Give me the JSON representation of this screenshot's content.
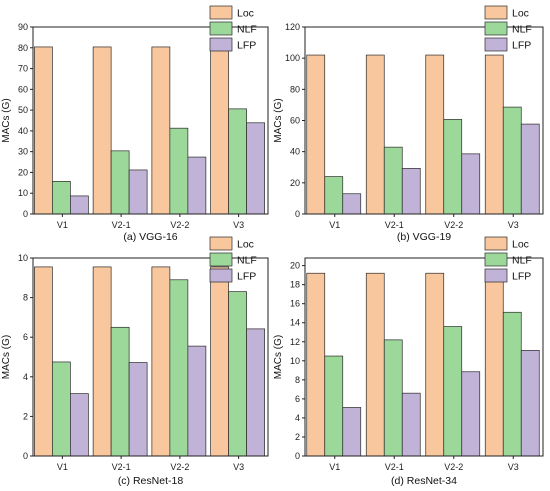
{
  "colors": {
    "Loc": "#f8c79d",
    "NLF": "#9cd89a",
    "LFP": "#c1b3d8",
    "stroke": "#2b2b2b"
  },
  "chart_data": [
    {
      "type": "bar",
      "caption": "(a) VGG-16",
      "ylabel": "MACs (G)",
      "categories": [
        "V1",
        "V2-1",
        "V2-2",
        "V3"
      ],
      "ylim": [
        0,
        90
      ],
      "yticks": [
        0,
        10,
        20,
        30,
        40,
        50,
        60,
        70,
        80,
        90
      ],
      "legend": "top-right",
      "series": [
        {
          "name": "Loc",
          "values": [
            80.4,
            80.4,
            80.4,
            80.4
          ]
        },
        {
          "name": "NLF",
          "values": [
            15.7,
            30.4,
            41.3,
            50.6
          ]
        },
        {
          "name": "LFP",
          "values": [
            8.7,
            21.2,
            27.4,
            43.9
          ]
        }
      ]
    },
    {
      "type": "bar",
      "caption": "(b) VGG-19",
      "ylabel": "MACs (G)",
      "categories": [
        "V1",
        "V2-1",
        "V2-2",
        "V3"
      ],
      "ylim": [
        0,
        120
      ],
      "yticks": [
        0,
        20,
        40,
        60,
        80,
        100,
        120
      ],
      "legend": "top-right",
      "series": [
        {
          "name": "Loc",
          "values": [
            102.0,
            102.0,
            102.0,
            102.0
          ]
        },
        {
          "name": "NLF",
          "values": [
            24.0,
            42.9,
            60.7,
            68.6
          ]
        },
        {
          "name": "LFP",
          "values": [
            13.0,
            29.3,
            38.6,
            57.7
          ]
        }
      ]
    },
    {
      "type": "bar",
      "caption": "(c) ResNet-18",
      "ylabel": "MACs (G)",
      "categories": [
        "V1",
        "V2-1",
        "V2-2",
        "V3"
      ],
      "ylim": [
        0,
        10
      ],
      "yticks": [
        0,
        2,
        4,
        6,
        8,
        10
      ],
      "legend": "top-right",
      "series": [
        {
          "name": "Loc",
          "values": [
            9.55,
            9.55,
            9.55,
            9.55
          ]
        },
        {
          "name": "NLF",
          "values": [
            4.75,
            6.5,
            8.9,
            8.3
          ]
        },
        {
          "name": "LFP",
          "values": [
            3.15,
            4.72,
            5.55,
            6.42
          ]
        }
      ]
    },
    {
      "type": "bar",
      "caption": "(d) ResNet-34",
      "ylabel": "MACs (G)",
      "categories": [
        "V1",
        "V2-1",
        "V2-2",
        "V3"
      ],
      "ylim": [
        0,
        20.8
      ],
      "yticks": [
        0,
        2,
        4,
        6,
        8,
        10,
        12,
        14,
        16,
        18,
        20
      ],
      "legend": "top-right",
      "series": [
        {
          "name": "Loc",
          "values": [
            19.2,
            19.2,
            19.2,
            19.2
          ]
        },
        {
          "name": "NLF",
          "values": [
            10.5,
            12.2,
            13.6,
            15.1
          ]
        },
        {
          "name": "LFP",
          "values": [
            5.1,
            6.6,
            8.85,
            11.1
          ]
        }
      ]
    }
  ]
}
